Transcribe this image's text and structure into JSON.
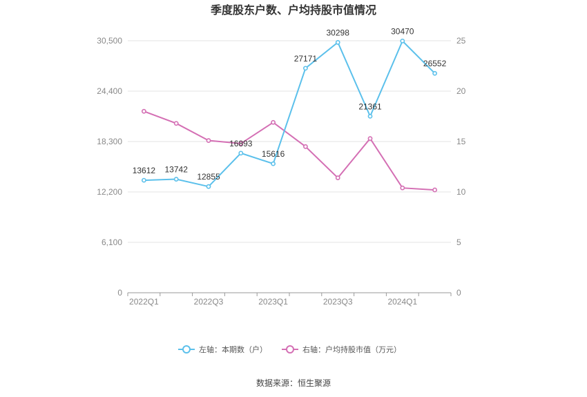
{
  "chart_data": {
    "type": "line",
    "title": "季度股东户数、户均持股市值情况",
    "categories": [
      "2022Q1",
      "2022Q2",
      "2022Q3",
      "2022Q4",
      "2023Q1",
      "2023Q2",
      "2023Q3",
      "2023Q4",
      "2024Q1",
      "2024Q2"
    ],
    "x_tick_labels": [
      "2022Q1",
      "2022Q3",
      "2023Q1",
      "2023Q3",
      "2024Q1"
    ],
    "left_axis": {
      "ticks": [
        "0",
        "6,100",
        "12,200",
        "18,300",
        "24,400",
        "30,500"
      ],
      "ylim": [
        0,
        30500
      ]
    },
    "right_axis": {
      "ticks": [
        "0",
        "5",
        "10",
        "15",
        "20",
        "25"
      ],
      "ylim": [
        0,
        25
      ]
    },
    "series": [
      {
        "name": "左轴：本期数（户）",
        "axis": "left",
        "color": "#5bc0eb",
        "values": [
          13612,
          13742,
          12855,
          16893,
          15616,
          27171,
          30298,
          21361,
          30470,
          26552
        ],
        "labels": [
          "13612",
          "13742",
          "12855",
          "16893",
          "15616",
          "27171",
          "30298",
          "21361",
          "30470",
          "26552"
        ]
      },
      {
        "name": "右轴：户均持股市值（万元）",
        "axis": "right",
        "color": "#d46fb4",
        "values": [
          18.0,
          16.8,
          15.1,
          14.8,
          16.9,
          14.5,
          11.4,
          15.3,
          10.4,
          10.2
        ]
      }
    ],
    "grid": true,
    "legend_position": "bottom-center",
    "source": "数据来源：恒生聚源"
  }
}
